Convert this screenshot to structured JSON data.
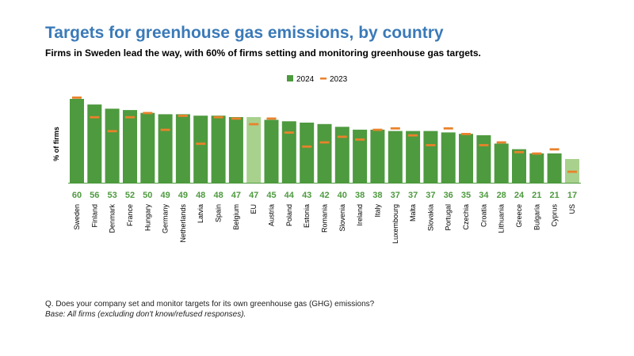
{
  "title": "Targets for greenhouse gas emissions, by country",
  "subtitle": "Firms in Sweden lead the way, with 60% of firms setting and monitoring greenhouse gas targets.",
  "footnote": {
    "question": "Q. Does your company set and monitor targets for its own greenhouse gas (GHG) emissions?",
    "base": "Base: All firms (excluding don't know/refused responses)."
  },
  "colors": {
    "bar": "#4e9a3f",
    "bar_highlight": "#a9d18e",
    "marker_2023": "#e9822b",
    "value_label": "#4e9a3f",
    "title": "#3a7ab8"
  },
  "chart_data": {
    "type": "bar",
    "ylabel": "% of firms",
    "ylim": [
      0,
      65
    ],
    "legend_position": "top-center",
    "categories": [
      "Sweden",
      "Finland",
      "Denmark",
      "France",
      "Hungary",
      "Germany",
      "Netherlands",
      "Latvia",
      "Spain",
      "Belgium",
      "EU",
      "Austria",
      "Poland",
      "Estonia",
      "Romania",
      "Slovenia",
      "Ireland",
      "Italy",
      "Luxembourg",
      "Malta",
      "Slovakia",
      "Portugal",
      "Czechia",
      "Croatia",
      "Lithuania",
      "Greece",
      "Bulgaria",
      "Cyprus",
      "US"
    ],
    "highlight_categories": [
      "EU",
      "US"
    ],
    "series": [
      {
        "name": "2024",
        "kind": "bar",
        "values": [
          60,
          56,
          53,
          52,
          50,
          49,
          49,
          48,
          48,
          47,
          47,
          45,
          44,
          43,
          42,
          40,
          38,
          38,
          37,
          37,
          37,
          36,
          35,
          34,
          28,
          24,
          21,
          21,
          17
        ]
      },
      {
        "name": "2023",
        "kind": "marker",
        "values": [
          61,
          47,
          37,
          47,
          50,
          38,
          48,
          28,
          47,
          46,
          42,
          46,
          36,
          26,
          29,
          33,
          31,
          38,
          39,
          34,
          27,
          39,
          35,
          27,
          29,
          22,
          21,
          24,
          8
        ]
      }
    ],
    "value_labels": [
      "60",
      "56",
      "53",
      "52",
      "50",
      "49",
      "49",
      "48",
      "48",
      "47",
      "47",
      "45",
      "44",
      "43",
      "42",
      "40",
      "38",
      "38",
      "37",
      "37",
      "37",
      "36",
      "35",
      "34",
      "28",
      "24",
      "21",
      "21",
      "17"
    ]
  }
}
